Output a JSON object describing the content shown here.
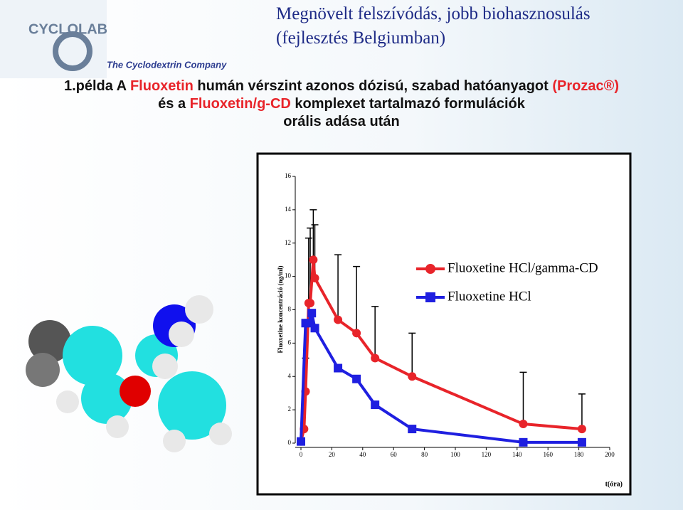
{
  "header": {
    "logo": "CYCLOLAB",
    "logo_tagline": "The Cyclodextrin Company",
    "title": "Megnövelt felszívódás, jobb biohasznosulás",
    "subtitle": "(fejlesztés Belgiumban)",
    "description": [
      [
        "1.példa A ",
        "Fluoxetin",
        " humán vérszint azonos dózisú, szabad hatóanyagot ",
        "(Prozac®)"
      ],
      [
        "és a ",
        "Fluoxetin/g-CD",
        " komplexet tartalmazó formulációk"
      ],
      [
        "orális adása után"
      ]
    ]
  },
  "chart_data": {
    "type": "line",
    "x_label": "t(óra)",
    "y_label": "Fluoxetine koncentráció (ng/ml)",
    "xlim": [
      0,
      200
    ],
    "ylim": [
      0,
      16
    ],
    "xticks": [
      0,
      20,
      40,
      60,
      80,
      100,
      120,
      140,
      160,
      180,
      200
    ],
    "yticks": [
      0,
      2,
      4,
      6,
      8,
      10,
      12,
      14,
      16
    ],
    "grid": false,
    "series": [
      {
        "name": "Fluoxetine HCl/gamma-CD",
        "color": "#e8242a",
        "marker": "circle",
        "x": [
          0,
          2,
          3,
          5,
          6,
          8,
          9,
          24,
          36,
          48,
          72,
          144,
          182
        ],
        "values": [
          0.1,
          0.85,
          3.1,
          8.4,
          8.4,
          11.0,
          9.9,
          7.4,
          6.6,
          5.1,
          4.0,
          1.15,
          0.85
        ],
        "errors": [
          null,
          null,
          2.0,
          3.9,
          4.5,
          3.0,
          3.2,
          3.9,
          4.0,
          3.1,
          2.6,
          3.1,
          2.1
        ]
      },
      {
        "name": "Fluoxetine HCl",
        "color": "#1f1fe0",
        "marker": "square",
        "x": [
          0,
          3,
          5,
          7,
          9,
          24,
          36,
          48,
          72,
          144,
          182
        ],
        "values": [
          0.1,
          7.2,
          7.2,
          7.8,
          6.9,
          4.5,
          3.85,
          2.3,
          0.85,
          0.05,
          0.05
        ]
      }
    ]
  }
}
